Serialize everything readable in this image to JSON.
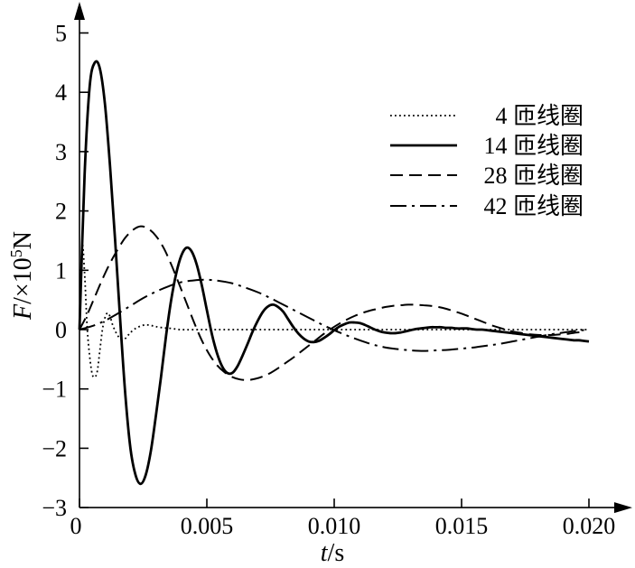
{
  "chart_data": {
    "type": "line",
    "xlabel_italic": "t",
    "xlabel_unit": "/s",
    "ylabel_italic": "F",
    "ylabel_unit_pre": "/×10",
    "ylabel_unit_exp": "5",
    "ylabel_unit_post": "N",
    "xlim": [
      0,
      0.0215
    ],
    "ylim": [
      -3,
      5.6
    ],
    "x_ticks": [
      0,
      0.005,
      0.01,
      0.015,
      0.02
    ],
    "x_tick_labels": [
      "0",
      "0.005",
      "0.010",
      "0.015",
      "0.020"
    ],
    "y_ticks": [
      -3,
      -2,
      -1,
      0,
      1,
      2,
      3,
      4,
      5
    ],
    "y_tick_labels": [
      "−3",
      "−2",
      "−1",
      "0",
      "1",
      "2",
      "3",
      "4",
      "5"
    ],
    "legend_position": "top-right",
    "series": [
      {
        "name": "4 匝线圈",
        "style": "dotted",
        "x": [
          0,
          0.0001,
          0.0002,
          0.0003,
          0.0004,
          0.0005,
          0.0006,
          0.0007,
          0.0008,
          0.0009,
          0.001,
          0.0011,
          0.0012,
          0.0013,
          0.0014,
          0.0015,
          0.0016,
          0.0017,
          0.0018,
          0.0019,
          0.002,
          0.0022,
          0.0024,
          0.0026,
          0.0028,
          0.003,
          0.0033,
          0.0036,
          0.004,
          0.005,
          0.007,
          0.01,
          0.015,
          0.02
        ],
        "y": [
          0,
          1.4,
          0.95,
          0.05,
          -0.45,
          -0.75,
          -0.8,
          -0.7,
          -0.35,
          0.0,
          0.2,
          0.28,
          0.22,
          0.08,
          -0.02,
          -0.1,
          -0.15,
          -0.17,
          -0.15,
          -0.1,
          -0.05,
          0.02,
          0.06,
          0.08,
          0.07,
          0.05,
          0.03,
          0.02,
          0.0,
          0.0,
          0.0,
          0.0,
          0.0,
          0.0
        ]
      },
      {
        "name": "14 匝线圈",
        "style": "solid",
        "x": [
          0,
          0.0002,
          0.0004,
          0.0006,
          0.0008,
          0.001,
          0.0012,
          0.0014,
          0.0016,
          0.0018,
          0.002,
          0.0022,
          0.0024,
          0.0026,
          0.0028,
          0.003,
          0.0032,
          0.0034,
          0.0036,
          0.0038,
          0.004,
          0.0042,
          0.0044,
          0.0046,
          0.0048,
          0.005,
          0.0052,
          0.0054,
          0.0056,
          0.0058,
          0.006,
          0.0062,
          0.0064,
          0.0066,
          0.0068,
          0.007,
          0.0072,
          0.0074,
          0.0076,
          0.0078,
          0.008,
          0.0082,
          0.0084,
          0.0086,
          0.0088,
          0.009,
          0.0092,
          0.0094,
          0.0096,
          0.0098,
          0.01,
          0.0102,
          0.0104,
          0.0106,
          0.0108,
          0.011,
          0.0112,
          0.0114,
          0.0116,
          0.0118,
          0.012,
          0.0122,
          0.0124,
          0.0126,
          0.0128,
          0.013,
          0.0132,
          0.0134,
          0.0136,
          0.0138,
          0.014,
          0.0142,
          0.0144,
          0.0146,
          0.0148,
          0.015,
          0.0152,
          0.0154,
          0.0156,
          0.0158,
          0.016,
          0.0162,
          0.0164,
          0.0166,
          0.0168,
          0.017,
          0.0172,
          0.0174,
          0.0176,
          0.0178,
          0.018,
          0.0182,
          0.0184,
          0.0186,
          0.0188,
          0.019,
          0.0192,
          0.0194,
          0.0196,
          0.0198,
          0.02
        ],
        "y": [
          0.0,
          2.6,
          4.1,
          4.5,
          4.4,
          3.8,
          2.75,
          1.5,
          0.15,
          -1.1,
          -2.0,
          -2.45,
          -2.6,
          -2.45,
          -2.05,
          -1.45,
          -0.8,
          -0.1,
          0.5,
          0.95,
          1.25,
          1.38,
          1.32,
          1.1,
          0.75,
          0.33,
          -0.08,
          -0.4,
          -0.62,
          -0.73,
          -0.73,
          -0.62,
          -0.44,
          -0.24,
          -0.03,
          0.15,
          0.3,
          0.39,
          0.42,
          0.38,
          0.3,
          0.17,
          0.04,
          -0.07,
          -0.15,
          -0.2,
          -0.21,
          -0.19,
          -0.14,
          -0.08,
          -0.01,
          0.05,
          0.09,
          0.12,
          0.12,
          0.11,
          0.08,
          0.04,
          0.0,
          -0.03,
          -0.05,
          -0.06,
          -0.06,
          -0.05,
          -0.03,
          -0.01,
          0.01,
          0.02,
          0.03,
          0.04,
          0.04,
          0.04,
          0.03,
          0.03,
          0.02,
          0.02,
          0.02,
          0.01,
          0.0,
          0.0,
          -0.01,
          -0.02,
          -0.03,
          -0.04,
          -0.05,
          -0.06,
          -0.07,
          -0.08,
          -0.09,
          -0.1,
          -0.11,
          -0.12,
          -0.13,
          -0.14,
          -0.15,
          -0.16,
          -0.17,
          -0.18,
          -0.18,
          -0.19,
          -0.2
        ]
      },
      {
        "name": "28 匝线圈",
        "style": "dashed",
        "x": [
          0,
          0.0003,
          0.0006,
          0.0009,
          0.0012,
          0.0015,
          0.0018,
          0.0021,
          0.0024,
          0.0027,
          0.003,
          0.0033,
          0.0036,
          0.0039,
          0.0042,
          0.0045,
          0.0048,
          0.0051,
          0.0054,
          0.0057,
          0.006,
          0.0063,
          0.0066,
          0.0069,
          0.0072,
          0.0075,
          0.0078,
          0.0081,
          0.0084,
          0.0087,
          0.009,
          0.0093,
          0.0096,
          0.0099,
          0.0102,
          0.0105,
          0.0108,
          0.0111,
          0.0114,
          0.0117,
          0.012,
          0.0123,
          0.0126,
          0.0129,
          0.0132,
          0.0135,
          0.0138,
          0.0141,
          0.0144,
          0.0147,
          0.015,
          0.0153,
          0.0156,
          0.0159,
          0.0162,
          0.0165,
          0.0168,
          0.0171,
          0.0174,
          0.0177,
          0.018,
          0.0183,
          0.0186,
          0.0189,
          0.0192,
          0.0195,
          0.0198
        ],
        "y": [
          0.0,
          0.25,
          0.55,
          0.85,
          1.12,
          1.35,
          1.55,
          1.68,
          1.74,
          1.7,
          1.58,
          1.38,
          1.1,
          0.78,
          0.45,
          0.12,
          -0.18,
          -0.42,
          -0.6,
          -0.72,
          -0.8,
          -0.84,
          -0.85,
          -0.83,
          -0.79,
          -0.73,
          -0.65,
          -0.56,
          -0.47,
          -0.37,
          -0.27,
          -0.17,
          -0.07,
          0.02,
          0.1,
          0.17,
          0.23,
          0.28,
          0.32,
          0.35,
          0.38,
          0.4,
          0.41,
          0.42,
          0.42,
          0.41,
          0.4,
          0.38,
          0.35,
          0.31,
          0.27,
          0.22,
          0.17,
          0.12,
          0.07,
          0.03,
          -0.01,
          -0.04,
          -0.06,
          -0.08,
          -0.09,
          -0.09,
          -0.09,
          -0.08,
          -0.07,
          -0.05,
          -0.04
        ]
      },
      {
        "name": "42 匝线圈",
        "style": "dashdot",
        "x": [
          0,
          0.0005,
          0.001,
          0.0015,
          0.002,
          0.0025,
          0.003,
          0.0035,
          0.004,
          0.0045,
          0.005,
          0.0055,
          0.006,
          0.0065,
          0.007,
          0.0075,
          0.008,
          0.0085,
          0.009,
          0.0095,
          0.01,
          0.0105,
          0.011,
          0.0115,
          0.012,
          0.0125,
          0.013,
          0.0135,
          0.014,
          0.0145,
          0.015,
          0.0155,
          0.016,
          0.0165,
          0.017,
          0.0175,
          0.018,
          0.0185,
          0.019,
          0.0195,
          0.02
        ],
        "y": [
          0.0,
          0.06,
          0.15,
          0.27,
          0.4,
          0.53,
          0.64,
          0.73,
          0.8,
          0.83,
          0.84,
          0.82,
          0.78,
          0.71,
          0.63,
          0.53,
          0.42,
          0.31,
          0.2,
          0.09,
          -0.01,
          -0.1,
          -0.18,
          -0.25,
          -0.3,
          -0.33,
          -0.35,
          -0.36,
          -0.35,
          -0.34,
          -0.32,
          -0.3,
          -0.27,
          -0.24,
          -0.2,
          -0.16,
          -0.12,
          -0.08,
          -0.05,
          -0.02,
          0.0
        ]
      }
    ]
  }
}
